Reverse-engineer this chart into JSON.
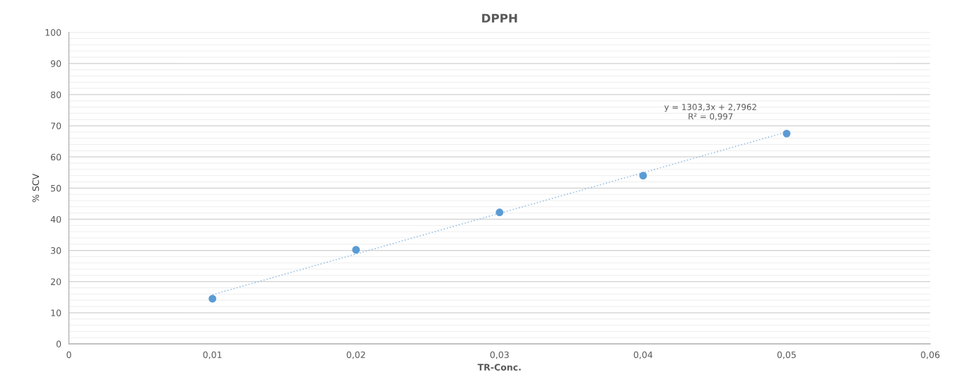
{
  "chart_data": {
    "type": "scatter",
    "title": "DPPH",
    "xlabel": "TR-Conc.",
    "ylabel": "% SCV",
    "xlim": [
      0,
      0.06
    ],
    "ylim": [
      0,
      100
    ],
    "xticks": [
      {
        "value": 0,
        "label": "0"
      },
      {
        "value": 0.01,
        "label": "0,01"
      },
      {
        "value": 0.02,
        "label": "0,02"
      },
      {
        "value": 0.03,
        "label": "0,03"
      },
      {
        "value": 0.04,
        "label": "0,04"
      },
      {
        "value": 0.05,
        "label": "0,05"
      },
      {
        "value": 0.06,
        "label": "0,06"
      }
    ],
    "yticks": [
      0,
      10,
      20,
      30,
      40,
      50,
      60,
      70,
      80,
      90,
      100
    ],
    "grid": "y",
    "legend": false,
    "annotations": [
      "y = 1303,3x + 2,7962",
      "R² = 0,997"
    ],
    "series": [
      {
        "color": "#5b9bd5",
        "marker": "circle",
        "x": [
          0.01,
          0.02,
          0.03,
          0.04,
          0.05
        ],
        "values": [
          14.5,
          30.2,
          42.2,
          54.0,
          67.5
        ]
      },
      {
        "type": "line",
        "color": "#9dc3e6",
        "marker": "none",
        "line_style": "dotted",
        "x": [
          0.01,
          0.05
        ],
        "values": [
          15.8,
          68.0
        ]
      }
    ]
  }
}
